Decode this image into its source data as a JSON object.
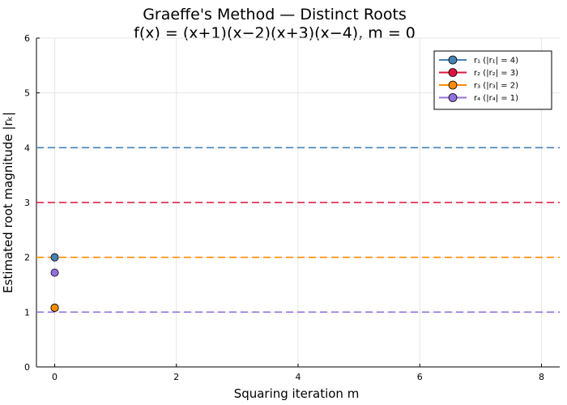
{
  "chart_data": {
    "type": "line",
    "title_line1": "Graeffe's Method — Distinct Roots",
    "title_line2": "f(x) = (x+1)(x−2)(x+3)(x−4),  m = 0",
    "xlabel": "Squaring iteration m",
    "ylabel": "Estimated root magnitude |rₖ|",
    "xlim": [
      -0.3,
      8.3
    ],
    "ylim": [
      0,
      6
    ],
    "xticks": [
      0,
      2,
      4,
      6,
      8
    ],
    "yticks": [
      0,
      1,
      2,
      3,
      4,
      5,
      6
    ],
    "grid": true,
    "legend_position": "top-right",
    "series": [
      {
        "name": "r₁  (|r₁| = 4)",
        "color": "#4682b4",
        "true_value": 4,
        "x": [
          0
        ],
        "y": [
          2.0
        ]
      },
      {
        "name": "r₂  (|r₂| = 3)",
        "color": "#dc143c",
        "true_value": 3,
        "x": [
          0
        ],
        "y": [
          1.08
        ]
      },
      {
        "name": "r₃  (|r₃| = 2)",
        "color": "#ff8c00",
        "true_value": 2,
        "x": [
          0
        ],
        "y": [
          1.08
        ]
      },
      {
        "name": "r₄  (|r₄| = 1)",
        "color": "#9370db",
        "true_value": 1,
        "x": [
          0
        ],
        "y": [
          1.72
        ]
      }
    ]
  }
}
